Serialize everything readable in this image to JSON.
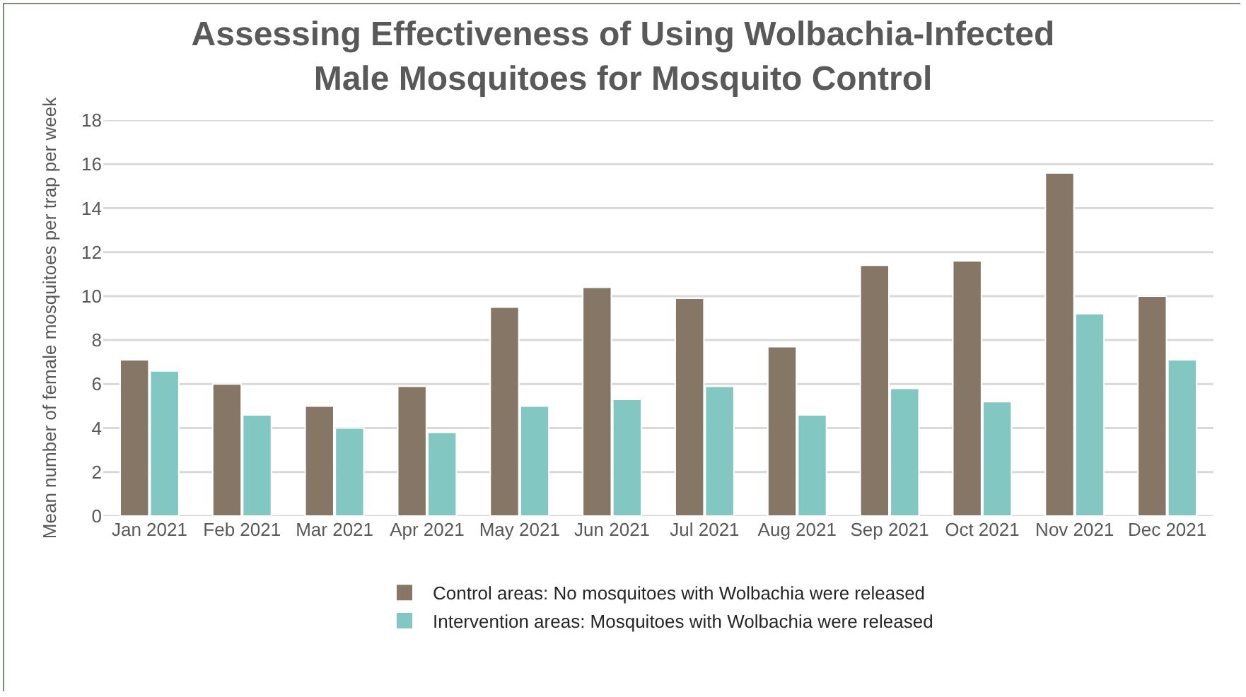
{
  "chart_data": {
    "type": "bar",
    "title": "Assessing Effectiveness of Using Wolbachia-Infected Male Mosquitoes for Mosquito Control",
    "ylabel": "Mean number of female mosquitoes per trap per week",
    "categories": [
      "Jan 2021",
      "Feb 2021",
      "Mar 2021",
      "Apr 2021",
      "May 2021",
      "Jun 2021",
      "Jul 2021",
      "Aug 2021",
      "Sep 2021",
      "Oct 2021",
      "Nov 2021",
      "Dec 2021"
    ],
    "series": [
      {
        "name": "Control areas: No mosquitoes with Wolbachia were released",
        "color": "#857665",
        "values": [
          7.1,
          6.0,
          5.0,
          5.9,
          9.5,
          10.4,
          9.9,
          7.7,
          11.4,
          11.6,
          15.6,
          10.0
        ]
      },
      {
        "name": "Intervention areas: Mosquitoes with Wolbachia were released",
        "color": "#83c7c3",
        "values": [
          6.6,
          4.6,
          4.0,
          3.8,
          5.0,
          5.3,
          5.9,
          4.6,
          5.8,
          5.2,
          9.2,
          7.1
        ]
      }
    ],
    "ylim": [
      0,
      18
    ],
    "yticks": [
      0,
      2,
      4,
      6,
      8,
      10,
      12,
      14,
      16,
      18
    ],
    "grid": "y",
    "legend": "bottom"
  }
}
